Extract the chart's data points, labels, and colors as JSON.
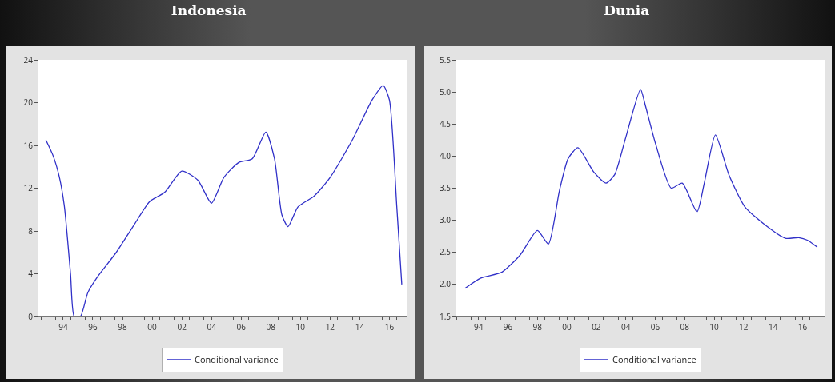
{
  "chart_data": [
    {
      "type": "line",
      "title": "Indonesia",
      "legend": "bottom",
      "grid": false,
      "marker": "none",
      "line_style": "solid",
      "xlim": [
        "1992-05",
        "2017-03"
      ],
      "xticks": [
        {
          "value": "1992-07",
          "label": null
        },
        {
          "value": "1993-07",
          "label": null
        },
        {
          "value": "1994",
          "label": "94"
        },
        {
          "value": "1994-07",
          "label": null
        },
        {
          "value": "1995-07",
          "label": null
        },
        {
          "value": "1996",
          "label": "96"
        },
        {
          "value": "1996-07",
          "label": null
        },
        {
          "value": "1997-07",
          "label": null
        },
        {
          "value": "1998",
          "label": "98"
        },
        {
          "value": "1998-07",
          "label": null
        },
        {
          "value": "1999-07",
          "label": null
        },
        {
          "value": "2000",
          "label": "00"
        },
        {
          "value": "2000-07",
          "label": null
        },
        {
          "value": "2001-07",
          "label": null
        },
        {
          "value": "2002",
          "label": "02"
        },
        {
          "value": "2002-07",
          "label": null
        },
        {
          "value": "2003-07",
          "label": null
        },
        {
          "value": "2004",
          "label": "04"
        },
        {
          "value": "2004-07",
          "label": null
        },
        {
          "value": "2005-07",
          "label": null
        },
        {
          "value": "2006",
          "label": "06"
        },
        {
          "value": "2006-07",
          "label": null
        },
        {
          "value": "2007-07",
          "label": null
        },
        {
          "value": "2008",
          "label": "08"
        },
        {
          "value": "2008-07",
          "label": null
        },
        {
          "value": "2009-07",
          "label": null
        },
        {
          "value": "2010",
          "label": "10"
        },
        {
          "value": "2010-07",
          "label": null
        },
        {
          "value": "2011-07",
          "label": null
        },
        {
          "value": "2012",
          "label": "12"
        },
        {
          "value": "2012-07",
          "label": null
        },
        {
          "value": "2013-07",
          "label": null
        },
        {
          "value": "2014",
          "label": "14"
        },
        {
          "value": "2014-07",
          "label": null
        },
        {
          "value": "2015-07",
          "label": null
        },
        {
          "value": "2016",
          "label": "16"
        },
        {
          "value": "2016-07",
          "label": null
        }
      ],
      "ylim": [
        0,
        24
      ],
      "yticks": [
        0,
        4,
        8,
        12,
        16,
        20,
        24
      ],
      "series": [
        {
          "name": "Conditional variance",
          "color": "#3030c8",
          "x": [
            "1992-11",
            "1993-05",
            "1993-10",
            "1994-02",
            "1994-07",
            "1994-10",
            "1995-03",
            "1995-09",
            "1996-05",
            "1997-08",
            "1998-10",
            "1999-11",
            "2000-11",
            "2002-01",
            "2003-02",
            "2004-01",
            "2004-11",
            "2005-11",
            "2006-10",
            "2007-09",
            "2008-04",
            "2008-10",
            "2009-03",
            "2009-11",
            "2010-12",
            "2012-01",
            "2013-07",
            "2014-11",
            "2015-08",
            "2016-01",
            "2016-07",
            "2016-11"
          ],
          "values": [
            16.5,
            15.0,
            13.0,
            10.25,
            4.0,
            0,
            0,
            2.25,
            3.75,
            6.0,
            8.5,
            10.75,
            11.6,
            13.6,
            12.75,
            10.6,
            13.0,
            14.4,
            14.75,
            17.25,
            14.75,
            9.5,
            8.4,
            10.25,
            11.25,
            13.0,
            16.5,
            20.25,
            21.6,
            20.25,
            10.25,
            3.0
          ]
        }
      ]
    },
    {
      "type": "line",
      "title": "Dunia",
      "legend": "bottom",
      "grid": false,
      "marker": "none",
      "line_style": "solid",
      "xlim": [
        "1992-07",
        "2017-07"
      ],
      "xticks": [
        {
          "value": "1992-07",
          "label": null
        },
        {
          "value": "1993-07",
          "label": null
        },
        {
          "value": "1994",
          "label": "94"
        },
        {
          "value": "1994-07",
          "label": null
        },
        {
          "value": "1995-07",
          "label": null
        },
        {
          "value": "1996",
          "label": "96"
        },
        {
          "value": "1996-07",
          "label": null
        },
        {
          "value": "1997-07",
          "label": null
        },
        {
          "value": "1998",
          "label": "98"
        },
        {
          "value": "1998-07",
          "label": null
        },
        {
          "value": "1999-07",
          "label": null
        },
        {
          "value": "2000",
          "label": "00"
        },
        {
          "value": "2000-07",
          "label": null
        },
        {
          "value": "2001-07",
          "label": null
        },
        {
          "value": "2002",
          "label": "02"
        },
        {
          "value": "2002-07",
          "label": null
        },
        {
          "value": "2003-07",
          "label": null
        },
        {
          "value": "2004",
          "label": "04"
        },
        {
          "value": "2004-07",
          "label": null
        },
        {
          "value": "2005-07",
          "label": null
        },
        {
          "value": "2006",
          "label": "06"
        },
        {
          "value": "2006-07",
          "label": null
        },
        {
          "value": "2007-07",
          "label": null
        },
        {
          "value": "2008",
          "label": "08"
        },
        {
          "value": "2008-07",
          "label": null
        },
        {
          "value": "2009-07",
          "label": null
        },
        {
          "value": "2010",
          "label": "10"
        },
        {
          "value": "2010-07",
          "label": null
        },
        {
          "value": "2011-07",
          "label": null
        },
        {
          "value": "2012",
          "label": "12"
        },
        {
          "value": "2012-07",
          "label": null
        },
        {
          "value": "2013-07",
          "label": null
        },
        {
          "value": "2014",
          "label": "14"
        },
        {
          "value": "2014-07",
          "label": null
        },
        {
          "value": "2015-07",
          "label": null
        },
        {
          "value": "2016",
          "label": "16"
        },
        {
          "value": "2016-07",
          "label": null
        },
        {
          "value": "2017-07",
          "label": null
        }
      ],
      "ylim": [
        1.5,
        5.5
      ],
      "yticks": [
        1.5,
        {
          "value": 2,
          "label": "2.0"
        },
        2.5,
        {
          "value": 3,
          "label": "3.0"
        },
        3.5,
        {
          "value": 4,
          "label": "4.0"
        },
        4.5,
        {
          "value": 5,
          "label": "5.0"
        },
        5.5
      ],
      "series": [
        {
          "name": "Conditional variance",
          "color": "#3030c8",
          "x": [
            "1993-02",
            "1994-03",
            "1995-08",
            "1996-11",
            "1998-01",
            "1998-10",
            "1999-07",
            "2000-02",
            "2000-10",
            "2001-11",
            "2002-09",
            "2003-04",
            "2004-01",
            "2005-01",
            "2005-05",
            "2006-01",
            "2007-02",
            "2007-11",
            "2008-11",
            "2009-05",
            "2010-02",
            "2011-01",
            "2012-02",
            "2013-07",
            "2014-11",
            "2015-10",
            "2016-05",
            "2017-01"
          ],
          "values": [
            1.94,
            2.1,
            2.19,
            2.46,
            2.84,
            2.63,
            3.46,
            3.96,
            4.13,
            3.75,
            3.58,
            3.71,
            4.29,
            5.04,
            4.79,
            4.21,
            3.5,
            3.58,
            3.13,
            3.58,
            4.33,
            3.71,
            3.21,
            2.92,
            2.72,
            2.73,
            2.69,
            2.58
          ]
        }
      ]
    }
  ]
}
